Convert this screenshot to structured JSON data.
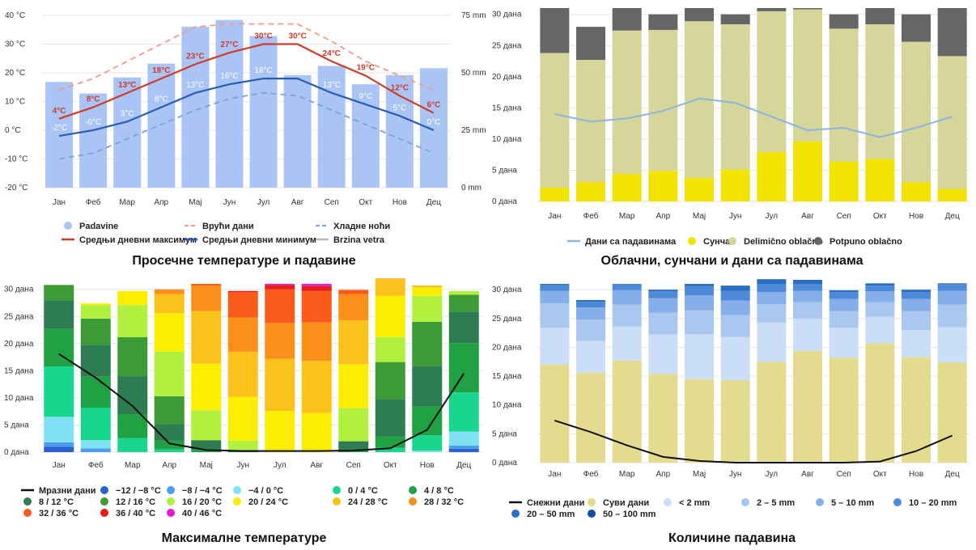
{
  "months": [
    "Јан",
    "Феб",
    "Мар",
    "Апр",
    "Мај",
    "Јун",
    "Јул",
    "Авг",
    "Сеп",
    "Окт",
    "Нов",
    "Дец"
  ],
  "chart_data": [
    {
      "type": "bar",
      "title": "Просечне температуре и падавине",
      "left_ticks": [
        "40 °C",
        "30 °C",
        "20 °C",
        "10 °C",
        "0 °C",
        "-10 °C",
        "-20 °C"
      ],
      "right_ticks": [
        "75 mm",
        "50 mm",
        "25 mm",
        "0 mm"
      ],
      "ylim_left": [
        -20,
        40
      ],
      "ylim_right": [
        0,
        75
      ],
      "series": [
        {
          "name": "Padavine",
          "kind": "bar",
          "axis": "right",
          "color": "#a9c4f5",
          "values": [
            46,
            41,
            48,
            54,
            70,
            73,
            66,
            49,
            53,
            45,
            49,
            52
          ]
        },
        {
          "name": "Врући дани",
          "kind": "dashed",
          "color": "#f39b8b",
          "values": [
            14,
            18,
            24,
            30,
            36,
            37,
            37,
            37,
            31,
            24,
            19,
            14
          ]
        },
        {
          "name": "Хладне ноћи",
          "kind": "dashed",
          "color": "#7aa3d8",
          "values": [
            -10,
            -8,
            -3,
            2,
            7,
            11,
            13,
            12,
            7,
            2,
            -3,
            -8
          ]
        },
        {
          "name": "Средњи дневни максимум",
          "kind": "line",
          "color": "#cc3d2b",
          "values": [
            4,
            8,
            13,
            18,
            23,
            27,
            30,
            30,
            24,
            19,
            12,
            6
          ]
        },
        {
          "name": "Средњи дневни минимум",
          "kind": "line",
          "color": "#2b5cb2",
          "values": [
            -2,
            0,
            3,
            8,
            13,
            16,
            18,
            18,
            13,
            9,
            5,
            0
          ]
        },
        {
          "name": "Brzina vetra",
          "kind": "legend-only",
          "color": "#b8b8b8",
          "values": []
        }
      ],
      "max_labels": [
        "4°C",
        "8°C",
        "13°C",
        "18°C",
        "23°C",
        "27°C",
        "30°C",
        "30°C",
        "24°C",
        "19°C",
        "12°C",
        "6°C"
      ],
      "min_labels": [
        "-2°C",
        "-0°C",
        "3°C",
        "8°C",
        "13°C",
        "16°C",
        "18°C",
        "18°C",
        "13°C",
        "9°C",
        "5°C",
        "0°C"
      ]
    },
    {
      "type": "bar",
      "title": "Облачни, сунчани и дани са падавинама",
      "ticks": [
        "30 дана",
        "25 дана",
        "20 дана",
        "15 дана",
        "10 дана",
        "5 дана",
        "0 дана"
      ],
      "ylim": [
        0,
        31
      ],
      "stacked_series": [
        {
          "name": "Сунчан",
          "color": "#f2e400",
          "values": [
            2.2,
            3.1,
            4.4,
            4.9,
            3.8,
            5.1,
            7.9,
            9.6,
            6.4,
            6.8,
            3.1,
            2.0
          ]
        },
        {
          "name": "Delimično oblačno",
          "color": "#d6d59a",
          "values": [
            21.6,
            19.6,
            23.0,
            22.6,
            25.1,
            23.3,
            22.6,
            21.2,
            21.3,
            21.6,
            22.5,
            21.3
          ]
        },
        {
          "name": "Potpuno oblačno",
          "color": "#666666",
          "values": [
            7.2,
            5.3,
            3.6,
            2.5,
            2.1,
            1.6,
            0.5,
            0.2,
            2.3,
            2.6,
            4.4,
            7.7
          ]
        }
      ],
      "line_series": {
        "name": "Дани са падавинама",
        "color": "#8bb6e0",
        "values": [
          14.0,
          12.8,
          13.3,
          14.5,
          16.5,
          15.8,
          13.6,
          11.4,
          11.8,
          10.3,
          11.8,
          13.6
        ]
      }
    },
    {
      "type": "bar",
      "title": "Максималне температуре",
      "ticks": [
        "30 дана",
        "25 дана",
        "20 дана",
        "15 дана",
        "10 дана",
        "5 дана",
        "0 дана"
      ],
      "ylim": [
        0,
        31
      ],
      "stacked_series": [
        {
          "name": "−12 / −8 °C",
          "color": "#2a62d6",
          "values": [
            1.0,
            0,
            0,
            0,
            0,
            0,
            0,
            0,
            0,
            0,
            0,
            0.6
          ]
        },
        {
          "name": "−8 / −4 °C",
          "color": "#4b9df0",
          "values": [
            0.8,
            0.7,
            0,
            0,
            0,
            0,
            0,
            0,
            0,
            0,
            0,
            0.6
          ]
        },
        {
          "name": "−4 / 0 °C",
          "color": "#7fe1f2",
          "values": [
            4.7,
            1.5,
            0,
            0,
            0,
            0,
            0,
            0,
            0,
            0,
            0.3,
            2.6
          ]
        },
        {
          "name": "0 / 4 °C",
          "color": "#19d68f",
          "values": [
            9.3,
            6.0,
            2.6,
            0.5,
            0,
            0,
            0,
            0,
            0,
            0.8,
            2.8,
            7.2
          ]
        },
        {
          "name": "4 / 8 °C",
          "color": "#1fa144",
          "values": [
            6.9,
            5.7,
            4.4,
            1.6,
            0.4,
            0,
            0,
            0,
            0.3,
            2.1,
            5.3,
            9.1
          ]
        },
        {
          "name": "8 / 12 °C",
          "color": "#2e7d52",
          "values": [
            5.3,
            5.9,
            7.0,
            3.1,
            1.8,
            0.4,
            0,
            0,
            1.7,
            6.9,
            7.5,
            5.8
          ]
        },
        {
          "name": "12 / 16 °C",
          "color": "#3c9b35",
          "values": [
            2.8,
            4.8,
            7.2,
            5.1,
            0,
            0,
            0,
            0,
            0,
            6.8,
            8.1,
            3.1
          ]
        },
        {
          "name": "16 / 20 °C",
          "color": "#b2f040",
          "values": [
            0,
            2.5,
            5.9,
            8.2,
            5.5,
            1.7,
            0,
            0,
            6.1,
            4.6,
            4.8,
            0.7
          ]
        },
        {
          "name": "20 / 24 °C",
          "color": "#fbee00",
          "values": [
            0,
            0.3,
            2.6,
            7.1,
            8.6,
            8.1,
            7.6,
            7.2,
            8.1,
            7.6,
            1.6,
            0
          ]
        },
        {
          "name": "24 / 28 °C",
          "color": "#fbc21c",
          "values": [
            0,
            0,
            0,
            3.5,
            9.7,
            8.3,
            9.6,
            9.6,
            8.1,
            3.1,
            0.3,
            0
          ]
        },
        {
          "name": "28 / 32 °C",
          "color": "#fa8f1a",
          "values": [
            0,
            0,
            0,
            0.9,
            4.7,
            6.3,
            6.6,
            7.1,
            4.8,
            0.1,
            0,
            0
          ]
        },
        {
          "name": "32 / 36 °C",
          "color": "#fa5a1a",
          "values": [
            0,
            0,
            0,
            0,
            0.3,
            4.7,
            6.2,
            5.8,
            0.8,
            0,
            0,
            0
          ]
        },
        {
          "name": "36 / 40 °C",
          "color": "#e61b1b",
          "values": [
            0,
            0,
            0,
            0,
            0,
            0.2,
            0.8,
            0.9,
            0,
            0,
            0,
            0
          ]
        },
        {
          "name": "40 / 46 °C",
          "color": "#e61ad6",
          "values": [
            0,
            0,
            0,
            0,
            0,
            0,
            0.2,
            0.4,
            0,
            0,
            0,
            0
          ]
        }
      ],
      "line_series": {
        "name": "Мразни дани",
        "color": "#111111",
        "values": [
          18.1,
          13.7,
          8.5,
          1.6,
          0.4,
          0.2,
          0.2,
          0.2,
          0.3,
          0.7,
          4.1,
          14.5
        ]
      }
    },
    {
      "type": "bar",
      "title": "Количине падавина",
      "ticks": [
        "30 дана",
        "25 дана",
        "20 дана",
        "15 дана",
        "10 дана",
        "5 дана",
        "0 дана"
      ],
      "ylim": [
        0,
        31
      ],
      "stacked_series": [
        {
          "name": "Суви дани",
          "color": "#e3dc8f",
          "values": [
            17.0,
            15.6,
            17.7,
            15.4,
            14.5,
            14.3,
            17.5,
            19.4,
            18.2,
            20.7,
            18.3,
            17.4
          ]
        },
        {
          "name": "< 2 mm",
          "color": "#cadff7",
          "values": [
            6.4,
            5.5,
            5.9,
            6.8,
            7.8,
            7.5,
            6.8,
            5.6,
            5.2,
            4.6,
            4.7,
            6.1
          ]
        },
        {
          "name": "2 – 5 mm",
          "color": "#a9c7ef",
          "values": [
            4.2,
            3.7,
            3.8,
            3.8,
            4.1,
            3.8,
            3.2,
            2.8,
            2.9,
            2.5,
            3.3,
            3.9
          ]
        },
        {
          "name": "5 – 10 mm",
          "color": "#86aee8",
          "values": [
            2.2,
            2.1,
            2.5,
            2.5,
            2.6,
            2.5,
            2.1,
            2.0,
            2.1,
            1.9,
            2.1,
            2.4
          ]
        },
        {
          "name": "10 – 20 mm",
          "color": "#4f8ad8",
          "values": [
            1.0,
            1.0,
            1.0,
            1.2,
            1.6,
            1.7,
            1.3,
            1.1,
            1.2,
            1.0,
            1.2,
            1.1
          ]
        },
        {
          "name": "20 – 50 mm",
          "color": "#2b6fc4",
          "values": [
            0.2,
            0.3,
            0.1,
            0.3,
            0.4,
            0.8,
            0.8,
            0.7,
            0.3,
            0.4,
            0.4,
            0.2
          ]
        },
        {
          "name": "50 – 100 mm",
          "color": "#0f4f9e",
          "values": [
            0,
            0,
            0,
            0,
            0,
            0.1,
            0.1,
            0.1,
            0,
            0,
            0,
            0
          ]
        }
      ],
      "line_series": {
        "name": "Снежни дани",
        "color": "#111111",
        "values": [
          7.3,
          5.3,
          3.0,
          1.0,
          0.3,
          0,
          0,
          0,
          0,
          0.2,
          2.0,
          4.7
        ]
      }
    }
  ]
}
